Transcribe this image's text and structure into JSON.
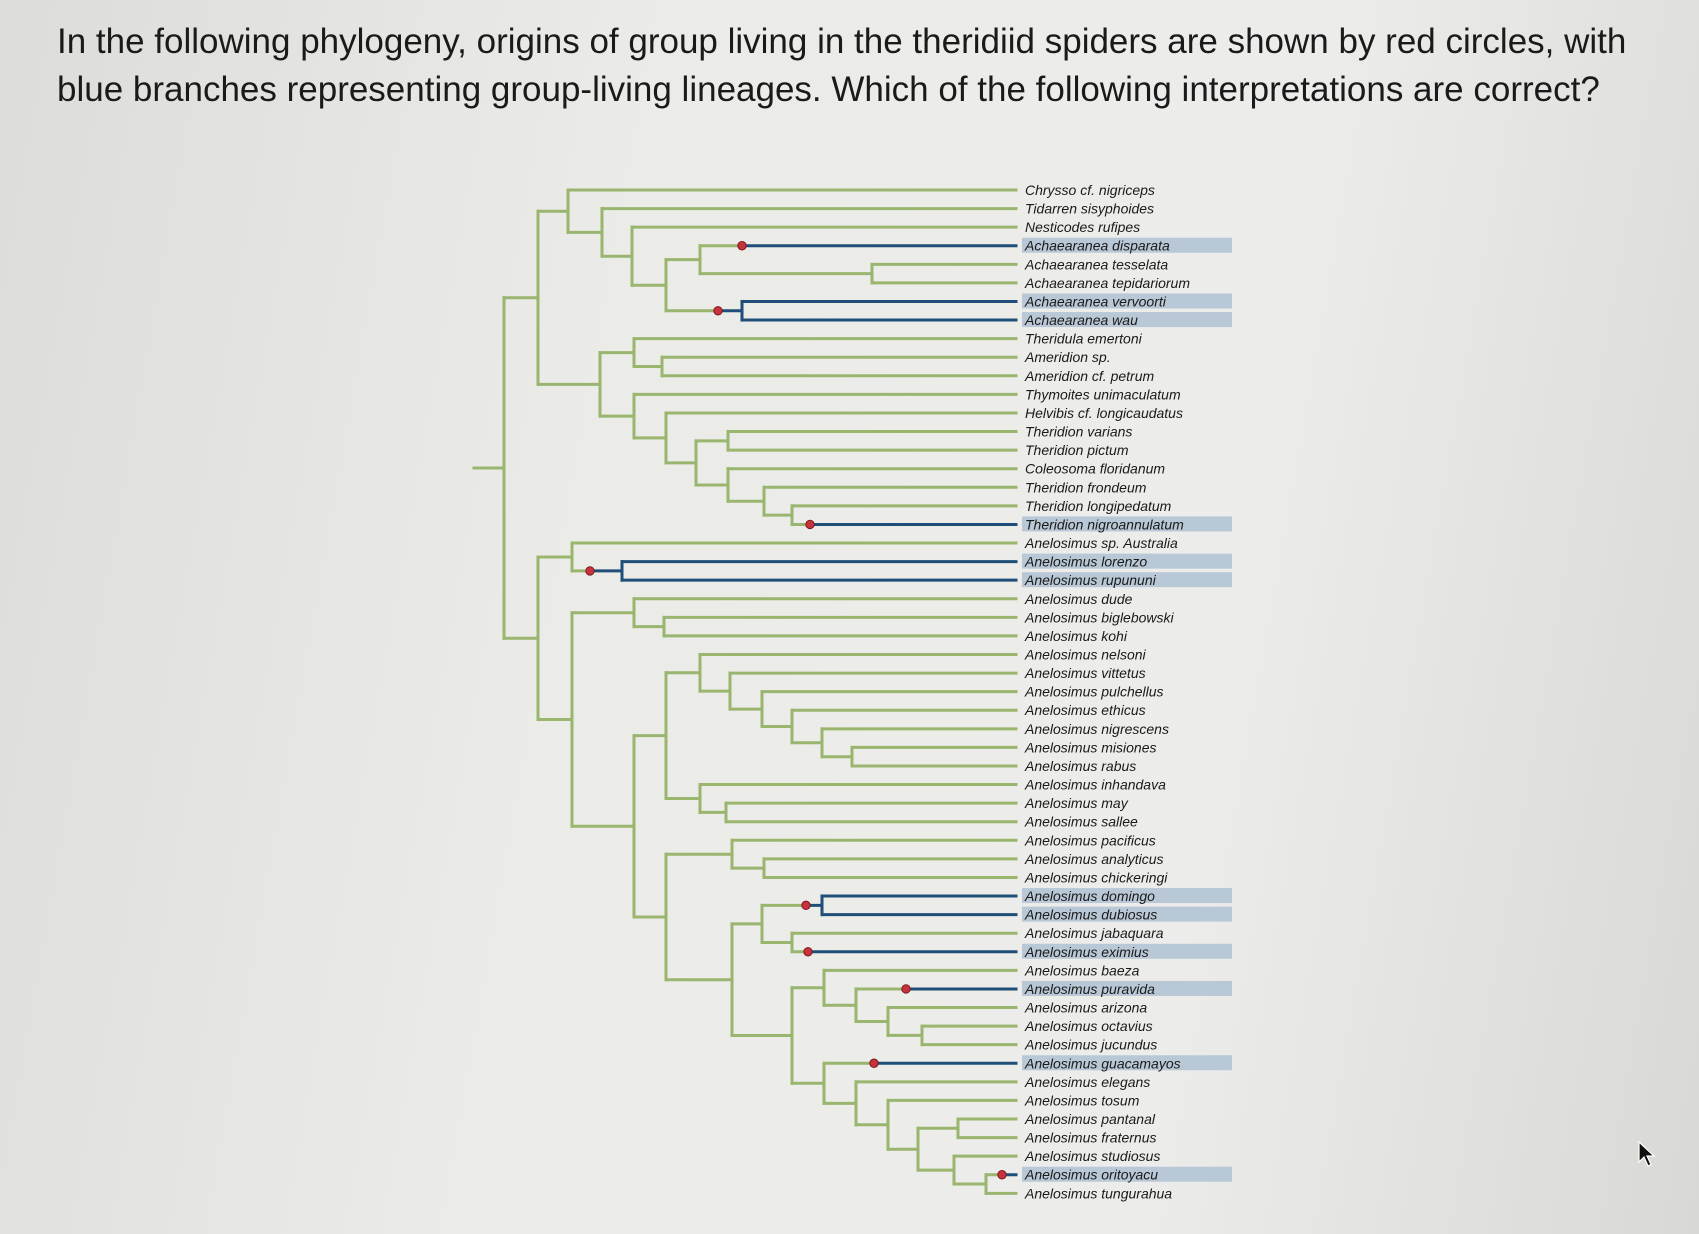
{
  "question": "In the following phylogeny, origins of group living in the theridiid spiders are shown by red circles, with blue branches representing group-living lineages. Which of the following interpretations are correct?",
  "colors": {
    "solitary_branch": "#9ab56e",
    "group_branch": "#1f4e79",
    "origin_marker": "#c8323a",
    "highlight": "#b9c8d6",
    "background": "#ececea"
  },
  "taxa": [
    {
      "name": "Chrysso cf. nigriceps",
      "group": false
    },
    {
      "name": "Tidarren sisyphoides",
      "group": false
    },
    {
      "name": "Nesticodes rufipes",
      "group": false
    },
    {
      "name": "Achaearanea disparata",
      "group": true
    },
    {
      "name": "Achaearanea tesselata",
      "group": false
    },
    {
      "name": "Achaearanea tepidariorum",
      "group": false
    },
    {
      "name": "Achaearanea vervoorti",
      "group": true
    },
    {
      "name": "Achaearanea wau",
      "group": true
    },
    {
      "name": "Theridula emertoni",
      "group": false
    },
    {
      "name": "Ameridion sp.",
      "group": false
    },
    {
      "name": "Ameridion cf. petrum",
      "group": false
    },
    {
      "name": "Thymoites unimaculatum",
      "group": false
    },
    {
      "name": "Helvibis cf. longicaudatus",
      "group": false
    },
    {
      "name": "Theridion varians",
      "group": false
    },
    {
      "name": "Theridion pictum",
      "group": false
    },
    {
      "name": "Coleosoma floridanum",
      "group": false
    },
    {
      "name": "Theridion frondeum",
      "group": false
    },
    {
      "name": "Theridion longipedatum",
      "group": false
    },
    {
      "name": "Theridion nigroannulatum",
      "group": true
    },
    {
      "name": "Anelosimus sp. Australia",
      "group": false
    },
    {
      "name": "Anelosimus lorenzo",
      "group": true
    },
    {
      "name": "Anelosimus rupununi",
      "group": true
    },
    {
      "name": "Anelosimus dude",
      "group": false
    },
    {
      "name": "Anelosimus biglebowski",
      "group": false
    },
    {
      "name": "Anelosimus kohi",
      "group": false
    },
    {
      "name": "Anelosimus nelsoni",
      "group": false
    },
    {
      "name": "Anelosimus vittetus",
      "group": false
    },
    {
      "name": "Anelosimus pulchellus",
      "group": false
    },
    {
      "name": "Anelosimus ethicus",
      "group": false
    },
    {
      "name": "Anelosimus nigrescens",
      "group": false
    },
    {
      "name": "Anelosimus misiones",
      "group": false
    },
    {
      "name": "Anelosimus rabus",
      "group": false
    },
    {
      "name": "Anelosimus inhandava",
      "group": false
    },
    {
      "name": "Anelosimus may",
      "group": false
    },
    {
      "name": "Anelosimus sallee",
      "group": false
    },
    {
      "name": "Anelosimus pacificus",
      "group": false
    },
    {
      "name": "Anelosimus analyticus",
      "group": false
    },
    {
      "name": "Anelosimus chickeringi",
      "group": false
    },
    {
      "name": "Anelosimus domingo",
      "group": true
    },
    {
      "name": "Anelosimus dubiosus",
      "group": true
    },
    {
      "name": "Anelosimus jabaquara",
      "group": false
    },
    {
      "name": "Anelosimus eximius",
      "group": true
    },
    {
      "name": "Anelosimus baeza",
      "group": false
    },
    {
      "name": "Anelosimus puravida",
      "group": true
    },
    {
      "name": "Anelosimus arizona",
      "group": false
    },
    {
      "name": "Anelosimus octavius",
      "group": false
    },
    {
      "name": "Anelosimus jucundus",
      "group": false
    },
    {
      "name": "Anelosimus guacamayos",
      "group": true
    },
    {
      "name": "Anelosimus elegans",
      "group": false
    },
    {
      "name": "Anelosimus tosum",
      "group": false
    },
    {
      "name": "Anelosimus pantanal",
      "group": false
    },
    {
      "name": "Anelosimus fraternus",
      "group": false
    },
    {
      "name": "Anelosimus studiosus",
      "group": false
    },
    {
      "name": "Anelosimus oritoyacu",
      "group": true
    },
    {
      "name": "Anelosimus tungurahua",
      "group": false
    }
  ]
}
